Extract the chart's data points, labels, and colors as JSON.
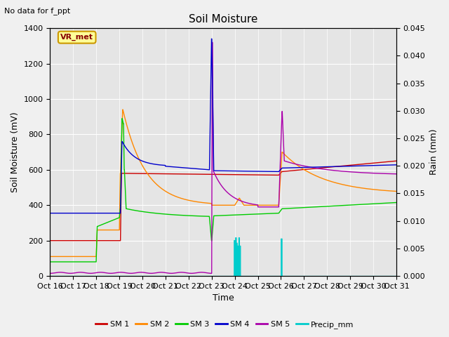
{
  "title": "Soil Moisture",
  "subtitle": "No data for f_ppt",
  "xlabel": "Time",
  "ylabel_left": "Soil Moisture (mV)",
  "ylabel_right": "Rain (mm)",
  "ylim_left": [
    0,
    1400
  ],
  "ylim_right": [
    0,
    0.045
  ],
  "yticks_left": [
    0,
    200,
    400,
    600,
    800,
    1000,
    1200,
    1400
  ],
  "yticks_right": [
    0.0,
    0.005,
    0.01,
    0.015,
    0.02,
    0.025,
    0.03,
    0.035,
    0.04,
    0.045
  ],
  "xtick_labels": [
    "Oct 16",
    "Oct 17",
    "Oct 18",
    "Oct 19",
    "Oct 20",
    "Oct 21",
    "Oct 22",
    "Oct 23",
    "Oct 24",
    "Oct 25",
    "Oct 26",
    "Oct 27",
    "Oct 28",
    "Oct 29",
    "Oct 30",
    "Oct 31"
  ],
  "bg_color": "#f0f0f0",
  "plot_bg_color": "#e5e5e5",
  "grid_color": "#ffffff",
  "legend_box_label": "VR_met",
  "legend_box_facecolor": "#ffff99",
  "legend_box_edgecolor": "#cc9900",
  "colors": {
    "SM1": "#cc0000",
    "SM2": "#ff8800",
    "SM3": "#00cc00",
    "SM4": "#0000cc",
    "SM5": "#aa00aa",
    "Precip": "#00cccc"
  },
  "figsize": [
    6.4,
    4.8
  ],
  "dpi": 100
}
